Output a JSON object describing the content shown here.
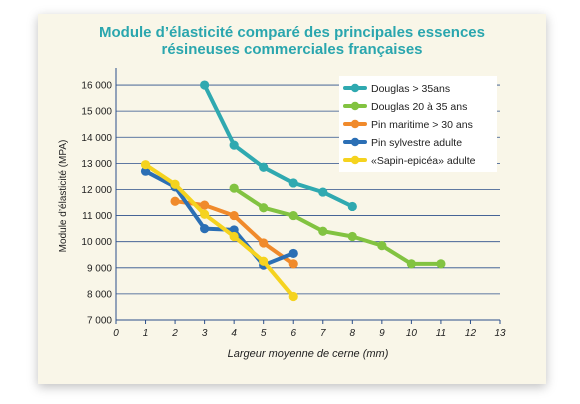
{
  "chart_data": {
    "type": "line",
    "title_line1": "Module d’élasticité comparé des principales essences",
    "title_line2": "résineuses commerciales françaises",
    "xlabel": "Largeur moyenne de cerne (mm)",
    "ylabel": "Module d’élasticité (MPA)",
    "xlim": [
      0,
      13
    ],
    "ylim": [
      7000,
      16500
    ],
    "x_ticks": [
      "0",
      "1",
      "2",
      "3",
      "4",
      "5",
      "6",
      "7",
      "8",
      "9",
      "10",
      "11",
      "12",
      "13"
    ],
    "y_ticks": [
      {
        "value": 7000,
        "label": "7 000"
      },
      {
        "value": 8000,
        "label": "8 000"
      },
      {
        "value": 9000,
        "label": "9 000"
      },
      {
        "value": 10000,
        "label": "10 000"
      },
      {
        "value": 11000,
        "label": "11 000"
      },
      {
        "value": 12000,
        "label": "12 000"
      },
      {
        "value": 13000,
        "label": "13 000"
      },
      {
        "value": 14000,
        "label": "14 000"
      },
      {
        "value": 15000,
        "label": "15 000"
      },
      {
        "value": 16000,
        "label": "16 000"
      }
    ],
    "grid": "horizontal",
    "legend_position": "top-right",
    "series": [
      {
        "name": "Douglas > 35ans",
        "color": "#2fa9b0",
        "points": [
          [
            3,
            16000
          ],
          [
            4,
            13700
          ],
          [
            5,
            12850
          ],
          [
            6,
            12250
          ],
          [
            7,
            11900
          ],
          [
            8,
            11350
          ]
        ]
      },
      {
        "name": "Douglas 20 à 35 ans",
        "color": "#82c341",
        "points": [
          [
            4,
            12050
          ],
          [
            5,
            11300
          ],
          [
            6,
            11000
          ],
          [
            7,
            10400
          ],
          [
            8,
            10200
          ],
          [
            9,
            9850
          ],
          [
            10,
            9150
          ],
          [
            11,
            9150
          ]
        ]
      },
      {
        "name": "Pin maritime > 30 ans",
        "color": "#f08a2b",
        "points": [
          [
            2,
            11550
          ],
          [
            3,
            11400
          ],
          [
            4,
            11000
          ],
          [
            5,
            9950
          ],
          [
            6,
            9150
          ]
        ]
      },
      {
        "name": "Pin sylvestre adulte",
        "color": "#2b6fb5",
        "points": [
          [
            1,
            12700
          ],
          [
            2,
            12100
          ],
          [
            3,
            10500
          ],
          [
            4,
            10450
          ],
          [
            5,
            9100
          ],
          [
            6,
            9550
          ]
        ]
      },
      {
        "name": "«Sapin-epicéa» adulte",
        "color": "#f5d31f",
        "points": [
          [
            1,
            12950
          ],
          [
            2,
            12200
          ],
          [
            3,
            11050
          ],
          [
            4,
            10200
          ],
          [
            5,
            9250
          ],
          [
            6,
            7900
          ]
        ]
      }
    ]
  }
}
